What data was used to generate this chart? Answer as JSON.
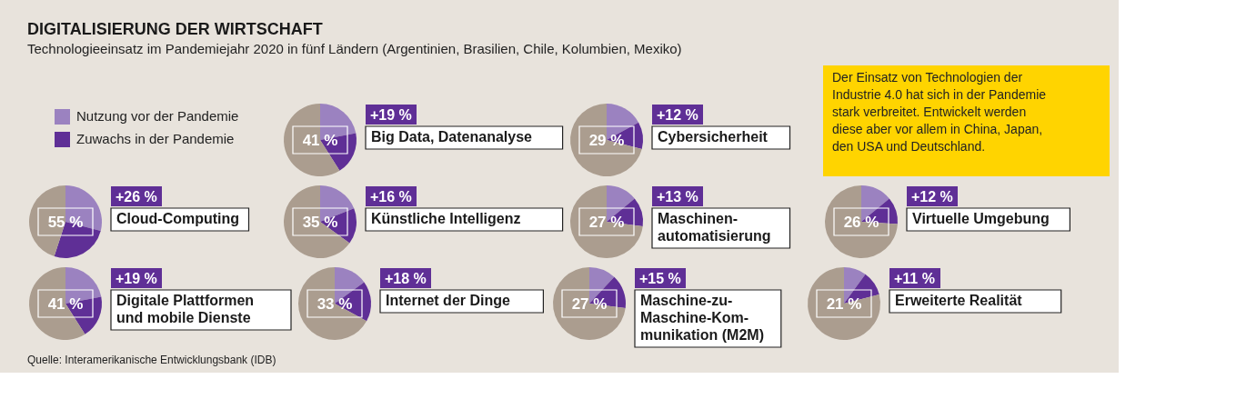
{
  "chart_data": [
    {
      "type": "other",
      "title": "DIGITALISIERUNG DER WIRTSCHAFT",
      "subtitle": "Technologieeinsatz im Pandemiejahr 2020 in fünf Ländern (Argentinien, Brasilien, Chile, Kolumbien, Mexiko)",
      "annotations": [
        "Der Einsatz von Technologien der\nIndustrie 4.0 hat sich in der Pandemie\nstark verbreitet. Entwickelt werden\ndiese aber vor allem in China, Japan,\nden USA und Deutschland.",
        "Quelle: Interamerikanische Entwicklungsbank (IDB)"
      ]
    },
    {
      "type": "pie",
      "title": "Big Data, Datenanalyse",
      "categories": [
        "Nutzung vor der Pandemie",
        "Zuwachs in der Pandemie",
        null
      ],
      "values": [
        22,
        19,
        59
      ],
      "colors": [
        "#9b82c0",
        "#5f2f96",
        "#ab9d8f"
      ],
      "annotations": [
        "41 %",
        "+19 %"
      ],
      "legend": "left"
    },
    {
      "type": "pie",
      "title": "Cybersicherheit",
      "values": [
        17,
        12,
        71
      ],
      "colors": [
        "#9b82c0",
        "#5f2f96",
        "#ab9d8f"
      ],
      "annotations": [
        "29 %",
        "+12 %"
      ]
    },
    {
      "type": "pie",
      "title": "Cloud-Computing",
      "values": [
        29,
        26,
        45
      ],
      "colors": [
        "#9b82c0",
        "#5f2f96",
        "#ab9d8f"
      ],
      "annotations": [
        "55 %",
        "+26 %"
      ]
    },
    {
      "type": "pie",
      "title": "Künstliche Intelligenz",
      "values": [
        19,
        16,
        65
      ],
      "colors": [
        "#9b82c0",
        "#5f2f96",
        "#ab9d8f"
      ],
      "annotations": [
        "35 %",
        "+16 %"
      ]
    },
    {
      "type": "pie",
      "title": "Maschinen-\nautomatisierung",
      "values": [
        14,
        13,
        73
      ],
      "colors": [
        "#9b82c0",
        "#5f2f96",
        "#ab9d8f"
      ],
      "annotations": [
        "27 %",
        "+13 %"
      ]
    },
    {
      "type": "pie",
      "title": "Virtuelle Umgebung",
      "values": [
        14,
        12,
        74
      ],
      "colors": [
        "#9b82c0",
        "#5f2f96",
        "#ab9d8f"
      ],
      "annotations": [
        "26 %",
        "+12 %"
      ]
    },
    {
      "type": "pie",
      "title": "Digitale Plattformen\nund mobile Dienste",
      "values": [
        22,
        19,
        59
      ],
      "colors": [
        "#9b82c0",
        "#5f2f96",
        "#ab9d8f"
      ],
      "annotations": [
        "41 %",
        "+19 %"
      ]
    },
    {
      "type": "pie",
      "title": "Internet der Dinge",
      "values": [
        15,
        18,
        67
      ],
      "colors": [
        "#9b82c0",
        "#5f2f96",
        "#ab9d8f"
      ],
      "annotations": [
        "33 %",
        "+18 %"
      ]
    },
    {
      "type": "pie",
      "title": "Maschine-zu-\nMaschine-Kom-\nmunikation (M2M)",
      "values": [
        12,
        15,
        73
      ],
      "colors": [
        "#9b82c0",
        "#5f2f96",
        "#ab9d8f"
      ],
      "annotations": [
        "27 %",
        "+15 %"
      ]
    },
    {
      "type": "pie",
      "title": "Erweiterte Realität",
      "values": [
        10,
        11,
        79
      ],
      "colors": [
        "#9b82c0",
        "#5f2f96",
        "#ab9d8f"
      ],
      "annotations": [
        "21 %",
        "+11 %"
      ]
    }
  ]
}
